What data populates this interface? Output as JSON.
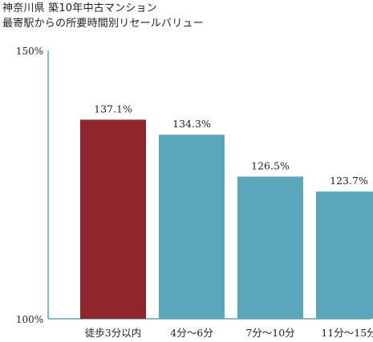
{
  "chart_data": {
    "type": "bar",
    "title": "神奈川県 築10年中古マンション",
    "subtitle": "最寄駅からの所要時間別リセールバリュー",
    "categories": [
      "徒歩3分以内",
      "4分～6分",
      "7分～10分",
      "11分～15分"
    ],
    "values": [
      137.1,
      134.3,
      126.5,
      123.7
    ],
    "value_labels": [
      "137.1%",
      "134.3%",
      "126.5%",
      "123.7%"
    ],
    "ylim": [
      100,
      150
    ],
    "yticks": [
      {
        "value": 100,
        "label": "100%"
      },
      {
        "value": 150,
        "label": "150%"
      }
    ],
    "xlabel": "",
    "ylabel": "",
    "grid": false,
    "colors": {
      "highlight": "#8f262b",
      "default": "#5aa7bb",
      "axis": "#5aa7bb"
    },
    "highlight_index": 0
  }
}
